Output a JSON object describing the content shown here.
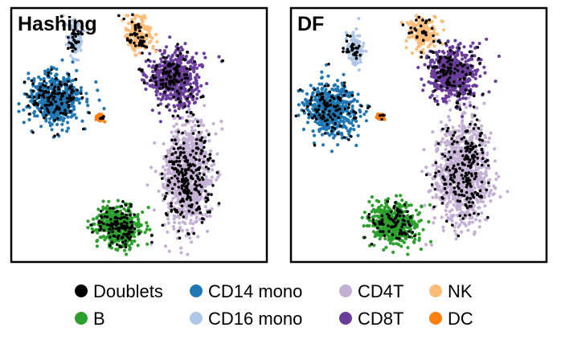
{
  "chart_data": [
    {
      "type": "scatter",
      "title": "Hashing",
      "xlabel": "",
      "ylabel": "",
      "grid": false,
      "axes_visible": false,
      "clusters": [
        {
          "name": "CD4T",
          "center": [
            0.69,
            0.66
          ],
          "spread": [
            0.075,
            0.17
          ],
          "count": 950
        },
        {
          "name": "CD8T",
          "center": [
            0.64,
            0.28
          ],
          "spread": [
            0.085,
            0.085
          ],
          "count": 520
        },
        {
          "name": "NK",
          "center": [
            0.5,
            0.1
          ],
          "spread": [
            0.045,
            0.06
          ],
          "count": 170
        },
        {
          "name": "CD14 mono",
          "center": [
            0.17,
            0.36
          ],
          "spread": [
            0.085,
            0.085
          ],
          "count": 520
        },
        {
          "name": "CD16 mono",
          "center": [
            0.25,
            0.12
          ],
          "spread": [
            0.025,
            0.06
          ],
          "count": 110
        },
        {
          "name": "DC",
          "center": [
            0.35,
            0.43
          ],
          "spread": [
            0.013,
            0.012
          ],
          "count": 35
        },
        {
          "name": "B",
          "center": [
            0.42,
            0.86
          ],
          "spread": [
            0.075,
            0.065
          ],
          "count": 480
        }
      ],
      "doublets": {
        "name": "Doublets",
        "count": 700
      }
    },
    {
      "type": "scatter",
      "title": "DF",
      "xlabel": "",
      "ylabel": "",
      "grid": false,
      "axes_visible": false,
      "clusters": [
        {
          "name": "CD4T",
          "center": [
            0.67,
            0.64
          ],
          "spread": [
            0.09,
            0.17
          ],
          "count": 950
        },
        {
          "name": "CD8T",
          "center": [
            0.63,
            0.26
          ],
          "spread": [
            0.085,
            0.085
          ],
          "count": 520
        },
        {
          "name": "NK",
          "center": [
            0.52,
            0.1
          ],
          "spread": [
            0.045,
            0.06
          ],
          "count": 170
        },
        {
          "name": "CD14 mono",
          "center": [
            0.16,
            0.4
          ],
          "spread": [
            0.085,
            0.085
          ],
          "count": 520
        },
        {
          "name": "CD16 mono",
          "center": [
            0.25,
            0.16
          ],
          "spread": [
            0.025,
            0.055
          ],
          "count": 110
        },
        {
          "name": "DC",
          "center": [
            0.35,
            0.43
          ],
          "spread": [
            0.013,
            0.012
          ],
          "count": 35
        },
        {
          "name": "B",
          "center": [
            0.4,
            0.85
          ],
          "spread": [
            0.075,
            0.065
          ],
          "count": 480
        }
      ],
      "doublets": {
        "name": "Doublets",
        "count": 550
      }
    }
  ],
  "legend": {
    "placement": "bottom",
    "items": [
      {
        "label": "Doublets",
        "color": "#000000"
      },
      {
        "label": "CD14 mono",
        "color": "#1f77b4"
      },
      {
        "label": "CD4T",
        "color": "#c5b0d5"
      },
      {
        "label": "NK",
        "color": "#ffbb78"
      },
      {
        "label": "B",
        "color": "#2ca02c"
      },
      {
        "label": "CD16 mono",
        "color": "#aec7e8"
      },
      {
        "label": "CD8T",
        "color": "#6a3d9a"
      },
      {
        "label": "DC",
        "color": "#ff7f0e"
      }
    ]
  },
  "colors": {
    "Doublets": "#000000",
    "CD14 mono": "#1f77b4",
    "CD16 mono": "#aec7e8",
    "CD4T": "#c5b0d5",
    "CD8T": "#6a3d9a",
    "NK": "#ffbb78",
    "DC": "#ff7f0e",
    "B": "#2ca02c"
  }
}
